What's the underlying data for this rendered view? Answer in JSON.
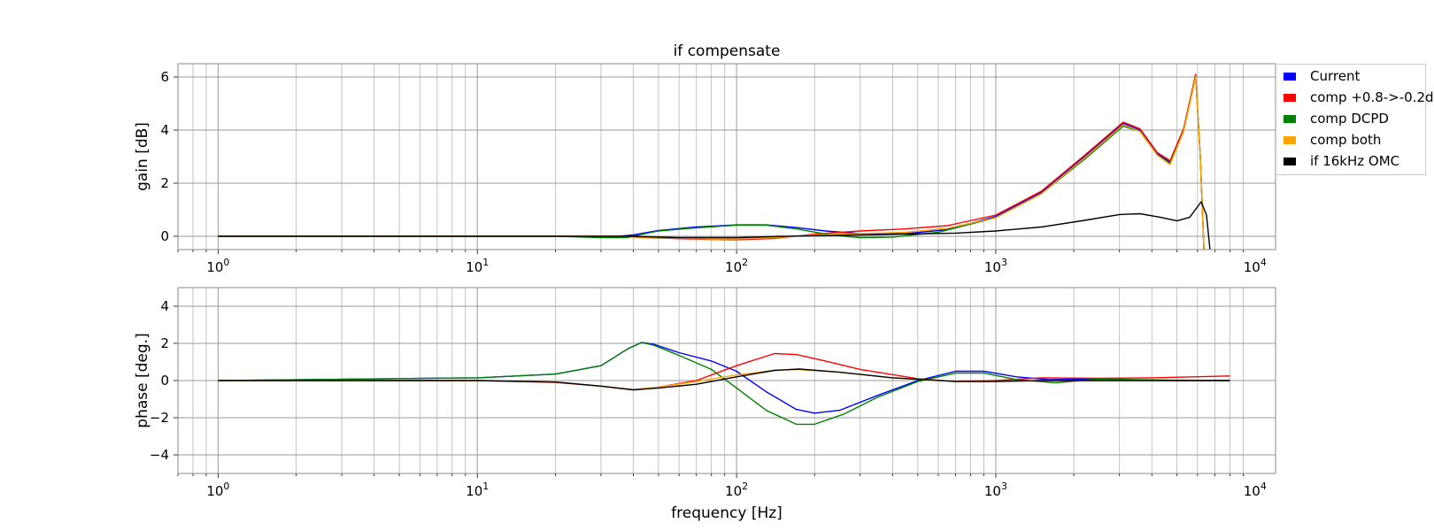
{
  "chart_data": [
    {
      "type": "line",
      "title": "if compensate",
      "xlabel": "",
      "ylabel": "gain [dB]",
      "xscale": "log",
      "xlim": [
        0.7,
        12000
      ],
      "ylim": [
        -0.5,
        6.5
      ],
      "yticks": [
        "0",
        "2",
        "4",
        "6"
      ],
      "xticks": [
        "10^0",
        "10^1",
        "10^2",
        "10^3",
        "10^4"
      ],
      "grid": true,
      "legend_position": "outside-top-right",
      "series": [
        {
          "name": "Current",
          "color": "#0000ff",
          "points": [
            [
              1,
              0
            ],
            [
              10,
              0
            ],
            [
              35,
              0
            ],
            [
              40,
              0.05
            ],
            [
              50,
              0.22
            ],
            [
              70,
              0.35
            ],
            [
              100,
              0.43
            ],
            [
              130,
              0.43
            ],
            [
              170,
              0.33
            ],
            [
              220,
              0.2
            ],
            [
              300,
              0.1
            ],
            [
              450,
              0.1
            ],
            [
              650,
              0.25
            ],
            [
              1000,
              0.75
            ],
            [
              1500,
              1.65
            ],
            [
              2200,
              3.0
            ],
            [
              3100,
              4.25
            ],
            [
              3600,
              4.0
            ],
            [
              4200,
              3.1
            ],
            [
              4700,
              2.8
            ],
            [
              5300,
              4.0
            ],
            [
              5900,
              6.05
            ],
            [
              6150,
              3.0
            ],
            [
              6350,
              -0.5
            ]
          ]
        },
        {
          "name": "comp +0.8->-0.2d",
          "color": "#ff0000",
          "points": [
            [
              1,
              0
            ],
            [
              10,
              0
            ],
            [
              35,
              0
            ],
            [
              45,
              -0.05
            ],
            [
              60,
              -0.09
            ],
            [
              80,
              -0.12
            ],
            [
              100,
              -0.13
            ],
            [
              140,
              -0.08
            ],
            [
              200,
              0.08
            ],
            [
              300,
              0.2
            ],
            [
              450,
              0.28
            ],
            [
              650,
              0.4
            ],
            [
              1000,
              0.8
            ],
            [
              1500,
              1.7
            ],
            [
              2200,
              3.05
            ],
            [
              3100,
              4.3
            ],
            [
              3600,
              4.05
            ],
            [
              4200,
              3.15
            ],
            [
              4700,
              2.85
            ],
            [
              5300,
              4.05
            ],
            [
              5900,
              6.1
            ],
            [
              6150,
              3.0
            ],
            [
              6350,
              -0.5
            ]
          ]
        },
        {
          "name": "comp DCPD",
          "color": "#008000",
          "points": [
            [
              1,
              0
            ],
            [
              10,
              0
            ],
            [
              20,
              0
            ],
            [
              30,
              -0.05
            ],
            [
              38,
              -0.05
            ],
            [
              42,
              0.05
            ],
            [
              50,
              0.2
            ],
            [
              70,
              0.32
            ],
            [
              100,
              0.42
            ],
            [
              130,
              0.42
            ],
            [
              170,
              0.28
            ],
            [
              230,
              0.05
            ],
            [
              300,
              -0.05
            ],
            [
              400,
              -0.03
            ],
            [
              600,
              0.15
            ],
            [
              1000,
              0.7
            ],
            [
              1500,
              1.6
            ],
            [
              2200,
              2.9
            ],
            [
              3100,
              4.15
            ],
            [
              3600,
              3.95
            ],
            [
              4200,
              3.05
            ],
            [
              4700,
              2.75
            ],
            [
              5300,
              3.95
            ],
            [
              5900,
              6.0
            ],
            [
              6150,
              3.0
            ],
            [
              6350,
              -0.5
            ]
          ]
        },
        {
          "name": "comp both",
          "color": "#ffa500",
          "points": [
            [
              1,
              0
            ],
            [
              10,
              0
            ],
            [
              35,
              0
            ],
            [
              45,
              -0.04
            ],
            [
              60,
              -0.07
            ],
            [
              80,
              -0.1
            ],
            [
              100,
              -0.1
            ],
            [
              140,
              -0.05
            ],
            [
              200,
              0.05
            ],
            [
              300,
              0.1
            ],
            [
              450,
              0.15
            ],
            [
              650,
              0.3
            ],
            [
              1000,
              0.7
            ],
            [
              1500,
              1.6
            ],
            [
              2200,
              2.95
            ],
            [
              3100,
              4.2
            ],
            [
              3600,
              3.95
            ],
            [
              4200,
              3.05
            ],
            [
              4700,
              2.7
            ],
            [
              5300,
              3.95
            ],
            [
              5900,
              6.0
            ],
            [
              6150,
              3.0
            ],
            [
              6350,
              -0.5
            ]
          ]
        },
        {
          "name": "if 16kHz OMC",
          "color": "#000000",
          "points": [
            [
              1,
              0
            ],
            [
              10,
              0
            ],
            [
              40,
              0
            ],
            [
              60,
              -0.05
            ],
            [
              100,
              -0.05
            ],
            [
              150,
              0
            ],
            [
              300,
              0.05
            ],
            [
              700,
              0.12
            ],
            [
              1000,
              0.2
            ],
            [
              1500,
              0.35
            ],
            [
              2200,
              0.6
            ],
            [
              3000,
              0.82
            ],
            [
              3600,
              0.85
            ],
            [
              4300,
              0.72
            ],
            [
              5000,
              0.58
            ],
            [
              5600,
              0.72
            ],
            [
              6200,
              1.3
            ],
            [
              6500,
              0.8
            ],
            [
              6700,
              -0.5
            ]
          ]
        }
      ]
    },
    {
      "type": "line",
      "title": "",
      "xlabel": "frequency [Hz]",
      "ylabel": "phase [deg.]",
      "xscale": "log",
      "xlim": [
        0.7,
        12000
      ],
      "ylim": [
        -5,
        5
      ],
      "yticks": [
        "−4",
        "−2",
        "0",
        "2",
        "4"
      ],
      "xticks": [
        "10^0",
        "10^1",
        "10^2",
        "10^3",
        "10^4"
      ],
      "grid": true,
      "series": [
        {
          "name": "Current",
          "color": "#0000ff",
          "points": [
            [
              1,
              0
            ],
            [
              10,
              0.15
            ],
            [
              20,
              0.35
            ],
            [
              30,
              0.8
            ],
            [
              38,
              1.7
            ],
            [
              43,
              2.05
            ],
            [
              48,
              1.95
            ],
            [
              60,
              1.5
            ],
            [
              80,
              1.05
            ],
            [
              100,
              0.5
            ],
            [
              130,
              -0.6
            ],
            [
              170,
              -1.55
            ],
            [
              200,
              -1.75
            ],
            [
              250,
              -1.6
            ],
            [
              350,
              -0.8
            ],
            [
              500,
              0
            ],
            [
              700,
              0.5
            ],
            [
              900,
              0.5
            ],
            [
              1200,
              0.2
            ],
            [
              1600,
              0.05
            ],
            [
              2500,
              0.08
            ],
            [
              3500,
              0.02
            ],
            [
              5000,
              0
            ],
            [
              8000,
              0
            ]
          ]
        },
        {
          "name": "comp +0.8->-0.2d",
          "color": "#ff0000",
          "points": [
            [
              1,
              0
            ],
            [
              10,
              0
            ],
            [
              20,
              -0.1
            ],
            [
              30,
              -0.3
            ],
            [
              40,
              -0.5
            ],
            [
              50,
              -0.35
            ],
            [
              70,
              0
            ],
            [
              100,
              0.8
            ],
            [
              140,
              1.45
            ],
            [
              170,
              1.4
            ],
            [
              220,
              1.05
            ],
            [
              300,
              0.6
            ],
            [
              500,
              0.1
            ],
            [
              700,
              -0.05
            ],
            [
              1000,
              0
            ],
            [
              1500,
              0.15
            ],
            [
              2500,
              0.12
            ],
            [
              4000,
              0.15
            ],
            [
              8000,
              0.25
            ]
          ]
        },
        {
          "name": "comp DCPD",
          "color": "#008000",
          "points": [
            [
              1,
              0
            ],
            [
              10,
              0.15
            ],
            [
              20,
              0.35
            ],
            [
              30,
              0.8
            ],
            [
              38,
              1.7
            ],
            [
              43,
              2.05
            ],
            [
              48,
              1.9
            ],
            [
              60,
              1.35
            ],
            [
              80,
              0.6
            ],
            [
              100,
              -0.4
            ],
            [
              130,
              -1.6
            ],
            [
              170,
              -2.35
            ],
            [
              200,
              -2.35
            ],
            [
              260,
              -1.8
            ],
            [
              350,
              -0.9
            ],
            [
              500,
              -0.05
            ],
            [
              700,
              0.4
            ],
            [
              900,
              0.4
            ],
            [
              1200,
              0.05
            ],
            [
              1700,
              -0.12
            ],
            [
              2500,
              0.08
            ],
            [
              3500,
              0.05
            ],
            [
              5000,
              0.02
            ],
            [
              8000,
              0
            ]
          ]
        },
        {
          "name": "comp both",
          "color": "#ffa500",
          "points": [
            [
              1,
              0
            ],
            [
              10,
              0
            ],
            [
              20,
              -0.08
            ],
            [
              30,
              -0.3
            ],
            [
              40,
              -0.5
            ],
            [
              50,
              -0.35
            ],
            [
              70,
              -0.05
            ],
            [
              100,
              0.3
            ],
            [
              140,
              0.55
            ],
            [
              170,
              0.6
            ],
            [
              250,
              0.45
            ],
            [
              400,
              0.15
            ],
            [
              700,
              -0.05
            ],
            [
              1000,
              -0.05
            ],
            [
              1500,
              0
            ],
            [
              3000,
              0
            ],
            [
              8000,
              0
            ]
          ]
        },
        {
          "name": "if 16kHz OMC",
          "color": "#000000",
          "points": [
            [
              1,
              0
            ],
            [
              10,
              0
            ],
            [
              20,
              -0.08
            ],
            [
              30,
              -0.3
            ],
            [
              40,
              -0.5
            ],
            [
              50,
              -0.4
            ],
            [
              70,
              -0.2
            ],
            [
              100,
              0.2
            ],
            [
              140,
              0.55
            ],
            [
              175,
              0.62
            ],
            [
              250,
              0.45
            ],
            [
              400,
              0.15
            ],
            [
              700,
              -0.05
            ],
            [
              1000,
              -0.05
            ],
            [
              1500,
              0
            ],
            [
              3000,
              0
            ],
            [
              8000,
              0
            ]
          ]
        }
      ]
    }
  ]
}
